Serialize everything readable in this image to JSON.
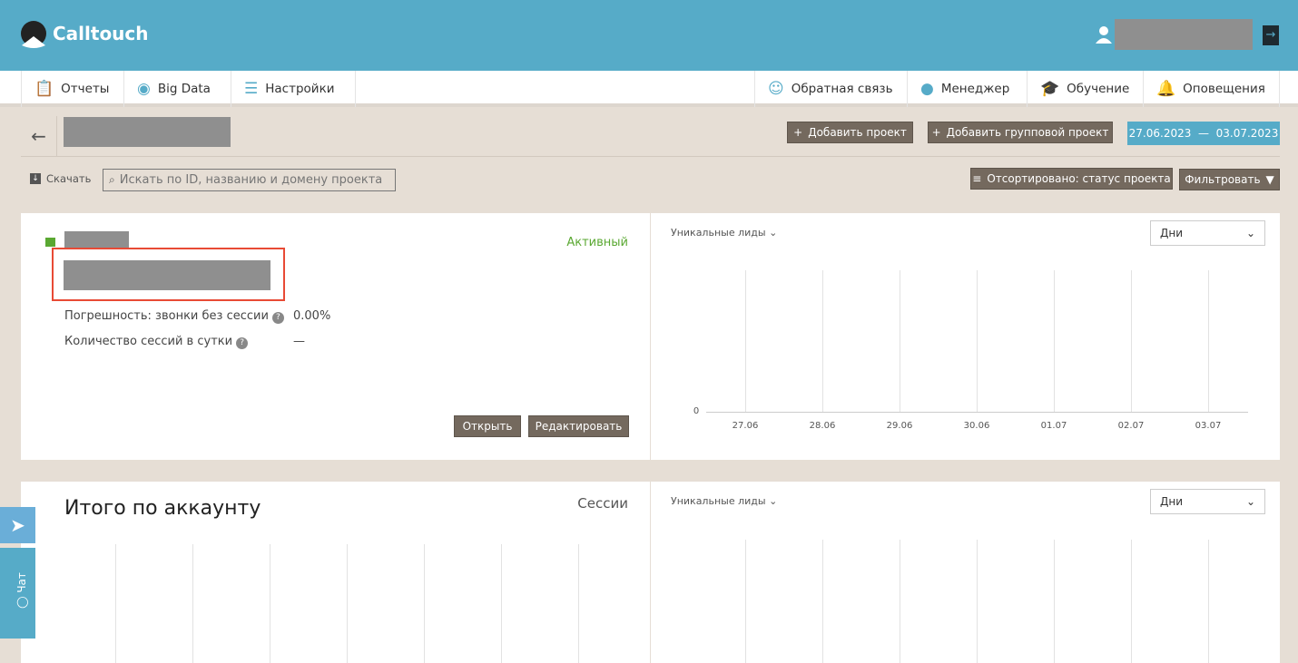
{
  "header": {
    "brand": "Calltouch",
    "user_icon": "user-icon",
    "logout_icon": "logout-icon"
  },
  "nav": {
    "left": [
      {
        "label": "Отчеты",
        "icon": "clipboard-icon"
      },
      {
        "label": "Big Data",
        "icon": "database-icon"
      },
      {
        "label": "Настройки",
        "icon": "sliders-icon"
      }
    ],
    "right": [
      {
        "label": "Обратная связь",
        "icon": "feedback-icon"
      },
      {
        "label": "Менеджер",
        "icon": "headset-icon"
      },
      {
        "label": "Обучение",
        "icon": "graduation-cap-icon"
      },
      {
        "label": "Оповещения",
        "icon": "bell-icon"
      }
    ]
  },
  "toolbar": {
    "add_project": "Добавить проект",
    "add_group_project": "Добавить групповой проект",
    "date_range": "27.06.2023  —  03.07.2023",
    "download": "Скачать",
    "search_placeholder": "Искать по ID, названию и домену проекта",
    "sorted": "Отсортировано: статус проекта",
    "filter": "Фильтровать"
  },
  "project": {
    "status": "Активный",
    "status_color": "#5aa832",
    "error_label": "Погрешность: звонки без сессии",
    "error_value": "0.00%",
    "sessions_label": "Количество сессий в сутки",
    "sessions_value": "—",
    "open": "Открыть",
    "edit": "Редактировать"
  },
  "chart1": {
    "metric": "Уникальные лиды",
    "period": "Дни",
    "y0": "0",
    "x": [
      "27.06",
      "28.06",
      "29.06",
      "30.06",
      "01.07",
      "02.07",
      "03.07"
    ]
  },
  "total": {
    "title": "Итого по аккаунту",
    "metric_left": "Сессии",
    "metric": "Уникальные лиды",
    "period": "Дни"
  },
  "side": {
    "chat": "Чат"
  },
  "accent": "#56abc8"
}
